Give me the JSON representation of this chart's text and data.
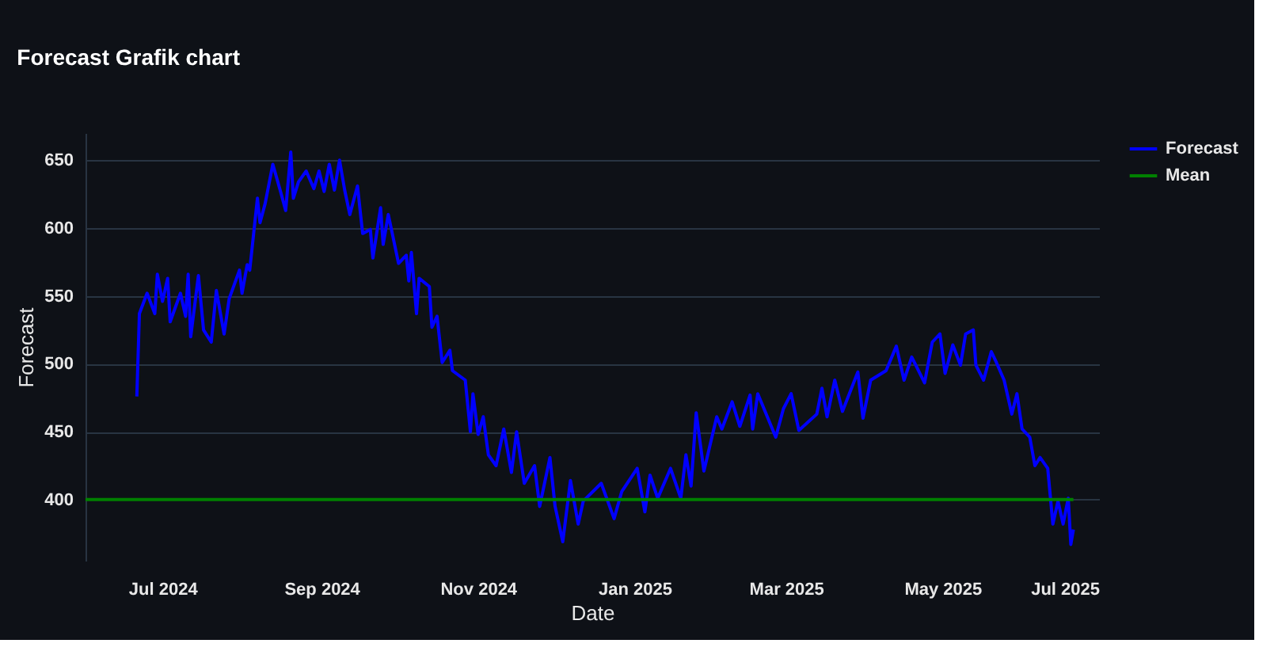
{
  "chart_data": {
    "type": "line",
    "title": "Forecast Grafik chart",
    "xlabel": "Date",
    "ylabel": "Forecast",
    "xlim": [
      "2024-06-01",
      "2025-07-01"
    ],
    "xticks": [
      {
        "value": "2024-07-01",
        "label": "Jul 2024"
      },
      {
        "value": "2024-09-01",
        "label": "Sep 2024"
      },
      {
        "value": "2024-11-01",
        "label": "Nov 2024"
      },
      {
        "value": "2025-01-01",
        "label": "Jan 2025"
      },
      {
        "value": "2025-03-01",
        "label": "Mar 2025"
      },
      {
        "value": "2025-05-01",
        "label": "May 2025"
      },
      {
        "value": "2025-07-01",
        "label": "Jul 2025"
      }
    ],
    "ylim": [
      355,
      670
    ],
    "yticks": [
      400,
      450,
      500,
      550,
      600,
      650
    ],
    "grid": "y",
    "legend": "top right",
    "line_style": "solid",
    "series": [
      {
        "name": "Forecast",
        "color": "#0000ff",
        "x": [
          "2024-06-21",
          "2024-06-22",
          "2024-06-25",
          "2024-06-28",
          "2024-06-29",
          "2024-07-01",
          "2024-07-03",
          "2024-07-04",
          "2024-07-08",
          "2024-07-10",
          "2024-07-11",
          "2024-07-12",
          "2024-07-15",
          "2024-07-17",
          "2024-07-20",
          "2024-07-22",
          "2024-07-25",
          "2024-07-27",
          "2024-07-31",
          "2024-08-01",
          "2024-08-03",
          "2024-08-04",
          "2024-08-07",
          "2024-08-08",
          "2024-08-10",
          "2024-08-13",
          "2024-08-16",
          "2024-08-18",
          "2024-08-20",
          "2024-08-21",
          "2024-08-23",
          "2024-08-26",
          "2024-08-29",
          "2024-08-31",
          "2024-09-02",
          "2024-09-04",
          "2024-09-06",
          "2024-09-08",
          "2024-09-10",
          "2024-09-12",
          "2024-09-15",
          "2024-09-17",
          "2024-09-20",
          "2024-09-21",
          "2024-09-24",
          "2024-09-25",
          "2024-09-27",
          "2024-10-01",
          "2024-10-04",
          "2024-10-05",
          "2024-10-06",
          "2024-10-08",
          "2024-10-09",
          "2024-10-13",
          "2024-10-14",
          "2024-10-16",
          "2024-10-18",
          "2024-10-21",
          "2024-10-22",
          "2024-10-27",
          "2024-10-29",
          "2024-10-30",
          "2024-11-01",
          "2024-11-03",
          "2024-11-05",
          "2024-11-08",
          "2024-11-11",
          "2024-11-14",
          "2024-11-16",
          "2024-11-19",
          "2024-11-23",
          "2024-11-25",
          "2024-11-29",
          "2024-12-01",
          "2024-12-04",
          "2024-12-07",
          "2024-12-10",
          "2024-12-12",
          "2024-12-19",
          "2024-12-24",
          "2024-12-27",
          "2025-01-02",
          "2025-01-05",
          "2025-01-07",
          "2025-01-10",
          "2025-01-15",
          "2025-01-19",
          "2025-01-21",
          "2025-01-23",
          "2025-01-25",
          "2025-01-28",
          "2025-02-02",
          "2025-02-04",
          "2025-02-08",
          "2025-02-11",
          "2025-02-15",
          "2025-02-16",
          "2025-02-18",
          "2025-02-25",
          "2025-02-28",
          "2025-03-03",
          "2025-03-06",
          "2025-03-13",
          "2025-03-15",
          "2025-03-17",
          "2025-03-20",
          "2025-03-23",
          "2025-03-29",
          "2025-03-31",
          "2025-04-03",
          "2025-04-09",
          "2025-04-13",
          "2025-04-16",
          "2025-04-19",
          "2025-04-24",
          "2025-04-27",
          "2025-04-30",
          "2025-05-02",
          "2025-05-05",
          "2025-05-08",
          "2025-05-10",
          "2025-05-13",
          "2025-05-14",
          "2025-05-17",
          "2025-05-20",
          "2025-05-22",
          "2025-05-25",
          "2025-05-28",
          "2025-05-30",
          "2025-06-01",
          "2025-06-04",
          "2025-06-06",
          "2025-06-08",
          "2025-06-11",
          "2025-06-13",
          "2025-06-15",
          "2025-06-17",
          "2025-06-19",
          "2025-06-20",
          "2025-06-21"
        ],
        "values": [
          476,
          537,
          552,
          537,
          566,
          546,
          563,
          531,
          552,
          535,
          566,
          520,
          565,
          525,
          516,
          554,
          522,
          548,
          569,
          552,
          573,
          569,
          622,
          604,
          618,
          647,
          627,
          613,
          656,
          622,
          634,
          642,
          629,
          642,
          627,
          647,
          628,
          650,
          628,
          610,
          631,
          596,
          599,
          578,
          615,
          588,
          610,
          574,
          580,
          561,
          582,
          537,
          563,
          557,
          527,
          535,
          501,
          510,
          495,
          488,
          450,
          478,
          448,
          461,
          433,
          425,
          452,
          420,
          450,
          412,
          425,
          395,
          431,
          395,
          369,
          414,
          382,
          399,
          412,
          386,
          406,
          423,
          391,
          418,
          401,
          423,
          401,
          433,
          410,
          464,
          421,
          461,
          452,
          472,
          454,
          477,
          452,
          478,
          446,
          467,
          478,
          451,
          463,
          482,
          461,
          488,
          465,
          494,
          460,
          488,
          495,
          513,
          488,
          505,
          486,
          516,
          522,
          493,
          514,
          499,
          522,
          525,
          499,
          488,
          509,
          501,
          488,
          463,
          478,
          452,
          446,
          425,
          431,
          423,
          382,
          399,
          382,
          401,
          367,
          378
        ]
      },
      {
        "name": "Mean",
        "color": "#008000",
        "x": [
          "2024-06-01",
          "2025-06-21"
        ],
        "values": [
          400,
          400
        ]
      }
    ]
  }
}
